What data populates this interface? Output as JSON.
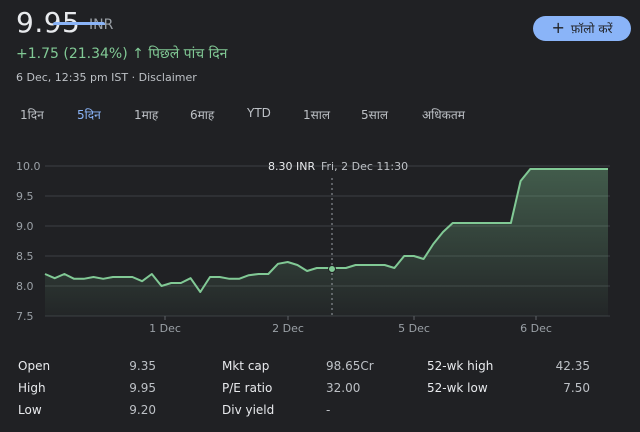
{
  "quote": {
    "price": "9.95",
    "currency": "INR",
    "change": "+1.75 (21.34%)",
    "change_arrow": "↑",
    "period": "पिछले पांच दिन",
    "meta": "6 Dec, 12:35 pm IST · Disclaimer"
  },
  "follow_button": {
    "label": "फ़ॉलो करें",
    "icon": "plus-icon"
  },
  "tabs": [
    {
      "label": "1दिन",
      "active": false
    },
    {
      "label": "5दिन",
      "active": true
    },
    {
      "label": "1माह",
      "active": false
    },
    {
      "label": "6माह",
      "active": false
    },
    {
      "label": "YTD",
      "active": false
    },
    {
      "label": "1साल",
      "active": false
    },
    {
      "label": "5साल",
      "active": false
    },
    {
      "label": "अधिकतम",
      "active": false
    }
  ],
  "chart_data": {
    "type": "area",
    "ylim": [
      7.5,
      10.0
    ],
    "y_ticks": [
      "10.0",
      "9.5",
      "9.0",
      "8.5",
      "8.0",
      "7.5"
    ],
    "x_ticks": [
      "1 Dec",
      "2 Dec",
      "5 Dec",
      "6 Dec"
    ],
    "tooltip": {
      "price": "8.30 INR",
      "time": "Fri, 2 Dec 11:30"
    },
    "series": [
      {
        "values": [
          8.2,
          8.13,
          8.2,
          8.12,
          8.12,
          8.15,
          8.12,
          8.15,
          8.15,
          8.15,
          8.08,
          8.2,
          8.0,
          8.05,
          8.05,
          8.13,
          7.9,
          8.15,
          8.15,
          8.12,
          8.12,
          8.18,
          8.2,
          8.2,
          8.37,
          8.4,
          8.35,
          8.25,
          8.3,
          8.3,
          8.3,
          8.3,
          8.35,
          8.35,
          8.35,
          8.35,
          8.3,
          8.5,
          8.5,
          8.45,
          8.7,
          8.9,
          9.05,
          9.05,
          9.05,
          9.05,
          9.05,
          9.05,
          9.05,
          9.75,
          9.95,
          9.95,
          9.95,
          9.95,
          9.95,
          9.95,
          9.95,
          9.95,
          9.95
        ]
      }
    ],
    "line_color": "#81c995",
    "fill_color": "#81c995",
    "grid": true
  },
  "stats": [
    {
      "label": "Open",
      "value": "9.35"
    },
    {
      "label": "High",
      "value": "9.95"
    },
    {
      "label": "Low",
      "value": "9.20"
    },
    {
      "label": "Mkt cap",
      "value": "98.65Cr"
    },
    {
      "label": "P/E ratio",
      "value": "32.00"
    },
    {
      "label": "Div yield",
      "value": "-"
    },
    {
      "label": "52-wk high",
      "value": "42.35"
    },
    {
      "label": "52-wk low",
      "value": "7.50"
    }
  ]
}
